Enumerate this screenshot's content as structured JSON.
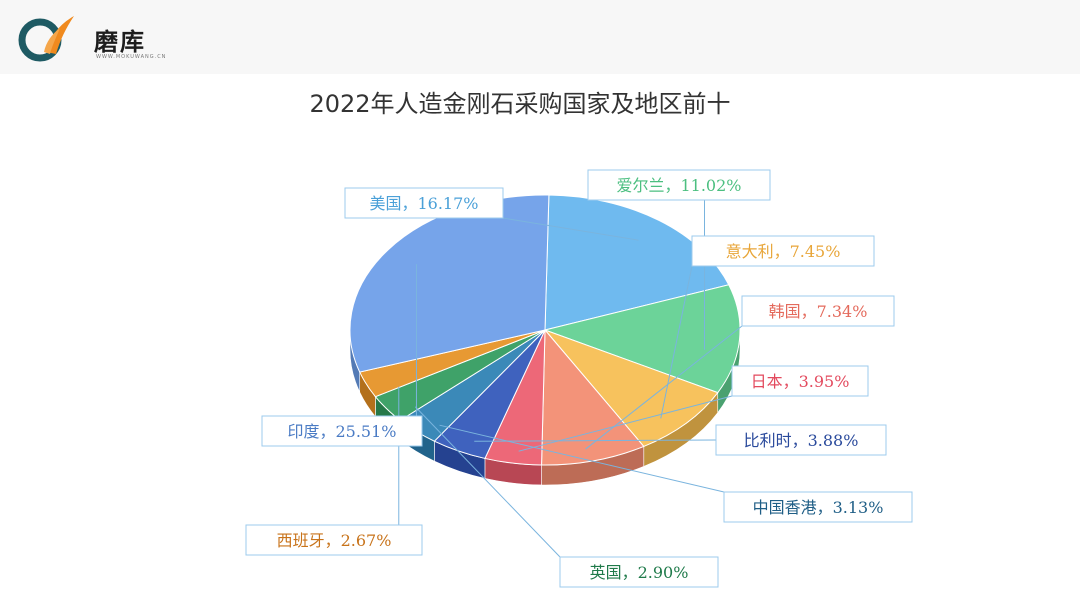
{
  "brand": {
    "name": "磨库",
    "url": "WWW.MOKUWANG.CN",
    "colors": {
      "teal": "#1e5a63",
      "orange": "#f08a1e"
    }
  },
  "chart_data": {
    "type": "pie",
    "title": "2022年人造金刚石采购国家及地区前十",
    "slices": [
      {
        "name": "美国",
        "value": 16.17,
        "label": "美国，16.17%",
        "color": "#63b4ee",
        "text_color": "#4aa0d8"
      },
      {
        "name": "爱尔兰",
        "value": 11.02,
        "label": "爱尔兰，11.02%",
        "color": "#5fcf90",
        "text_color": "#4cbf80"
      },
      {
        "name": "意大利",
        "value": 7.45,
        "label": "意大利，7.45%",
        "color": "#f6bd4f",
        "text_color": "#e8a63a"
      },
      {
        "name": "韩国",
        "value": 7.34,
        "label": "韩国，7.34%",
        "color": "#f28a6e",
        "text_color": "#e46a5c"
      },
      {
        "name": "日本",
        "value": 3.95,
        "label": "日本，3.95%",
        "color": "#ec5b6c",
        "text_color": "#e34a5e"
      },
      {
        "name": "比利时",
        "value": 3.88,
        "label": "比利时，3.88%",
        "color": "#2f55b8",
        "text_color": "#2a4a9c"
      },
      {
        "name": "中国香港",
        "value": 3.13,
        "label": "中国香港，3.13%",
        "color": "#2a7fb2",
        "text_color": "#1f5e86"
      },
      {
        "name": "英国",
        "value": 2.9,
        "label": "英国，2.90%",
        "color": "#2f9a5c",
        "text_color": "#1f7a4a"
      },
      {
        "name": "西班牙",
        "value": 2.67,
        "label": "西班牙，2.67%",
        "color": "#e59022",
        "text_color": "#c8731a"
      },
      {
        "name": "印度",
        "value": 25.51,
        "label": "印度，25.51%",
        "color": "#6a9ce8",
        "text_color": "#4a7bc4"
      }
    ]
  }
}
